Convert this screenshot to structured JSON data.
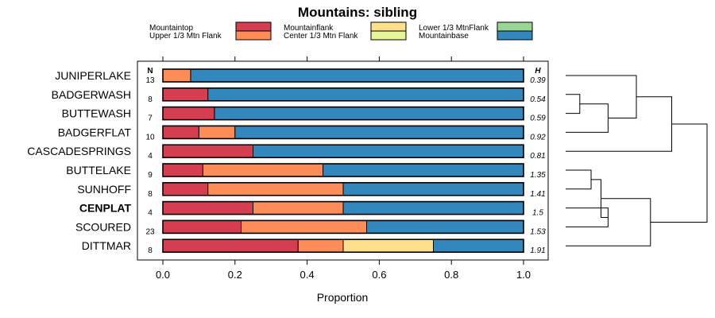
{
  "chart_data": {
    "type": "bar",
    "orientation": "horizontal",
    "stacked": true,
    "title": "Mountains: sibling",
    "xlabel": "Proportion",
    "ylabel": "",
    "xlim": [
      0,
      1
    ],
    "xticks": [
      "0.0",
      "0.2",
      "0.4",
      "0.6",
      "0.8",
      "1.0"
    ],
    "n_header": "N",
    "h_header": "H",
    "legend_placement": "top",
    "series": [
      {
        "name": "Mountaintop",
        "color": "#d53e4f"
      },
      {
        "name": "Upper 1/3 Mtn Flank",
        "color": "#fc8d59"
      },
      {
        "name": "Mountainflank",
        "color": "#fee08b"
      },
      {
        "name": "Center 1/3 Mtn Flank",
        "color": "#e6f598"
      },
      {
        "name": "Lower 1/3 MtnFlank",
        "color": "#99d594"
      },
      {
        "name": "Mountainbase",
        "color": "#3288bd"
      }
    ],
    "categories": [
      {
        "name": "JUNIPERLAKE",
        "n": "13",
        "h": "0.39",
        "bold": false,
        "values": [
          0,
          0.077,
          0,
          0,
          0,
          0.923
        ]
      },
      {
        "name": "BADGERWASH",
        "n": "8",
        "h": "0.54",
        "bold": false,
        "values": [
          0.125,
          0,
          0,
          0,
          0,
          0.875
        ]
      },
      {
        "name": "BUTTEWASH",
        "n": "7",
        "h": "0.59",
        "bold": false,
        "values": [
          0.143,
          0,
          0,
          0,
          0,
          0.857
        ]
      },
      {
        "name": "BADGERFLAT",
        "n": "10",
        "h": "0.92",
        "bold": false,
        "values": [
          0.1,
          0.1,
          0,
          0,
          0,
          0.8
        ]
      },
      {
        "name": "CASCADESPRINGS",
        "n": "4",
        "h": "0.81",
        "bold": false,
        "values": [
          0.25,
          0,
          0,
          0,
          0,
          0.75
        ]
      },
      {
        "name": "BUTTELAKE",
        "n": "9",
        "h": "1.35",
        "bold": false,
        "values": [
          0.111,
          0.333,
          0,
          0,
          0,
          0.556
        ]
      },
      {
        "name": "SUNHOFF",
        "n": "8",
        "h": "1.41",
        "bold": false,
        "values": [
          0.125,
          0.375,
          0,
          0,
          0,
          0.5
        ]
      },
      {
        "name": "CENPLAT",
        "n": "4",
        "h": "1.5",
        "bold": true,
        "values": [
          0.25,
          0.25,
          0,
          0,
          0,
          0.5
        ]
      },
      {
        "name": "SCOURED",
        "n": "23",
        "h": "1.53",
        "bold": false,
        "values": [
          0.217,
          0.348,
          0,
          0,
          0,
          0.435
        ]
      },
      {
        "name": "DITTMAR",
        "n": "8",
        "h": "1.91",
        "bold": false,
        "values": [
          0.375,
          0.125,
          0.25,
          0,
          0,
          0.25
        ]
      }
    ],
    "dendrogram": {
      "leaves": 10,
      "merges": [
        {
          "a": "L1",
          "b": "L2",
          "height": 0.1
        },
        {
          "a": "M0",
          "b": "L3",
          "height": 0.3
        },
        {
          "a": "L0",
          "b": "M1",
          "height": 0.5
        },
        {
          "a": "L5",
          "b": "L6",
          "height": 0.18
        },
        {
          "a": "L7",
          "b": "L8",
          "height": 0.3
        },
        {
          "a": "M3",
          "b": "M4",
          "height": 0.25
        },
        {
          "a": "M5",
          "b": "L9",
          "height": 0.6
        },
        {
          "a": "M2",
          "b": "L4",
          "height": 0.75
        },
        {
          "a": "M7",
          "b": "M6",
          "height": 1.0
        }
      ]
    }
  }
}
